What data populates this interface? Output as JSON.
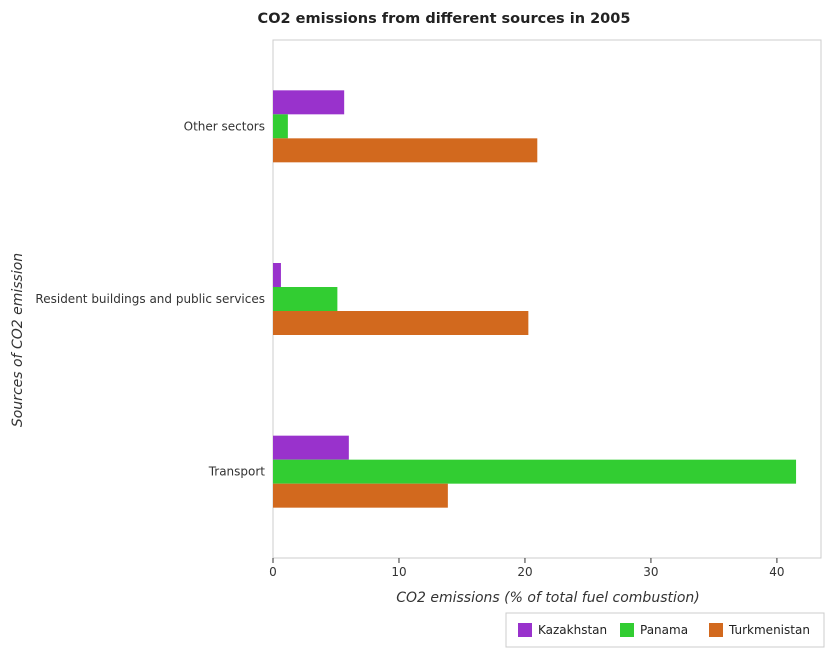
{
  "chart_data": {
    "type": "bar",
    "orientation": "horizontal",
    "title": "CO2 emissions from different sources in 2005",
    "xlabel": "CO2 emissions (% of total fuel combustion)",
    "ylabel": "Sources of CO2 emission",
    "categories": [
      "Other sectors",
      "Resident buildings and public services",
      "Transport"
    ],
    "xlim": [
      0,
      43.5
    ],
    "xticks": [
      0,
      10,
      20,
      30,
      40
    ],
    "grid": false,
    "legend_position": "bottom-right",
    "series": [
      {
        "name": "Kazakhstan",
        "color": "#9932CC",
        "values": [
          5.65,
          0.63,
          6.02
        ]
      },
      {
        "name": "Panama",
        "color": "#32CD32",
        "values": [
          1.18,
          5.11,
          41.52
        ]
      },
      {
        "name": "Turkmenistan",
        "color": "#D2691E",
        "values": [
          20.98,
          20.27,
          13.88
        ]
      }
    ]
  }
}
